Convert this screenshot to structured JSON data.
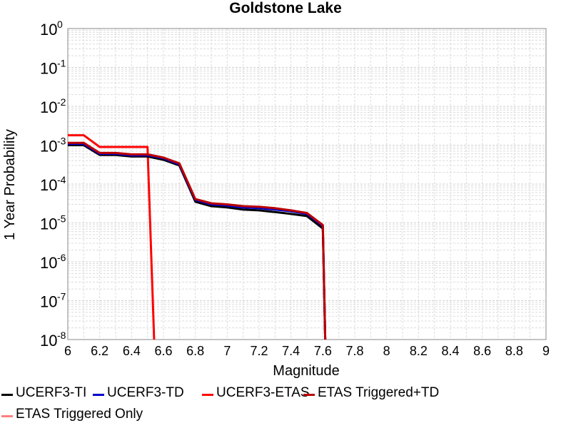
{
  "chart_data": {
    "type": "line",
    "title": "Goldstone Lake",
    "xlabel": "Magnitude",
    "ylabel": "1 Year Probability",
    "xlim": [
      6,
      9
    ],
    "ylim": [
      1e-08,
      1
    ],
    "yscale": "log",
    "grid": true,
    "legend_position": "bottom",
    "x_ticks": [
      "6",
      "6.2",
      "6.4",
      "6.6",
      "6.8",
      "7",
      "7.2",
      "7.4",
      "7.6",
      "7.8",
      "8",
      "8.2",
      "8.4",
      "8.6",
      "8.8",
      "9"
    ],
    "y_ticks": [
      {
        "base": "10",
        "exp": "0"
      },
      {
        "base": "10",
        "exp": "-1"
      },
      {
        "base": "10",
        "exp": "-2"
      },
      {
        "base": "10",
        "exp": "-3"
      },
      {
        "base": "10",
        "exp": "-4"
      },
      {
        "base": "10",
        "exp": "-5"
      },
      {
        "base": "10",
        "exp": "-6"
      },
      {
        "base": "10",
        "exp": "-7"
      },
      {
        "base": "10",
        "exp": "-8"
      }
    ],
    "series": [
      {
        "name": "UCERF3-TI",
        "color": "#000000",
        "x": [
          6.0,
          6.1,
          6.2,
          6.3,
          6.4,
          6.5,
          6.6,
          6.7,
          6.8,
          6.9,
          7.0,
          7.1,
          7.2,
          7.3,
          7.4,
          7.5,
          7.6,
          7.62
        ],
        "y": [
          0.001,
          0.001,
          0.00056,
          0.00056,
          0.00051,
          0.00051,
          0.00042,
          0.0003,
          3.5e-05,
          2.7e-05,
          2.5e-05,
          2.2e-05,
          2.1e-05,
          1.9e-05,
          1.7e-05,
          1.5e-05,
          7.2e-06,
          1e-09
        ]
      },
      {
        "name": "UCERF3-TD",
        "color": "#0000cc",
        "x": [
          6.0,
          6.1,
          6.2,
          6.3,
          6.4,
          6.5,
          6.6,
          6.7,
          6.8,
          6.9,
          7.0,
          7.1,
          7.2,
          7.3,
          7.4,
          7.5,
          7.6,
          7.62
        ],
        "y": [
          0.00108,
          0.00108,
          0.0006,
          0.0006,
          0.00055,
          0.00055,
          0.00046,
          0.00032,
          3.9e-05,
          3e-05,
          2.8e-05,
          2.5e-05,
          2.4e-05,
          2.2e-05,
          2e-05,
          1.7e-05,
          8.3e-06,
          1e-09
        ]
      },
      {
        "name": "UCERF3-ETAS",
        "color": "#ff0000",
        "x": [
          6.0,
          6.1,
          6.2,
          6.3,
          6.4,
          6.5,
          6.55
        ],
        "y": [
          0.0018,
          0.0018,
          0.0009,
          0.0009,
          0.0009,
          0.0009,
          1e-09
        ]
      },
      {
        "name": "ETAS Triggered+TD",
        "color": "#bb0000",
        "x": [
          6.0,
          6.1,
          6.2,
          6.3,
          6.4,
          6.5,
          6.6,
          6.7,
          6.8,
          6.9,
          7.0,
          7.1,
          7.2,
          7.3,
          7.4,
          7.5,
          7.6,
          7.62
        ],
        "y": [
          0.00115,
          0.00115,
          0.00063,
          0.00063,
          0.00058,
          0.00058,
          0.00048,
          0.00034,
          4.1e-05,
          3.2e-05,
          3e-05,
          2.7e-05,
          2.6e-05,
          2.4e-05,
          2.1e-05,
          1.8e-05,
          8.8e-06,
          1e-09
        ]
      },
      {
        "name": "ETAS Triggered Only",
        "color": "#ff8080",
        "x": [],
        "y": []
      }
    ]
  }
}
